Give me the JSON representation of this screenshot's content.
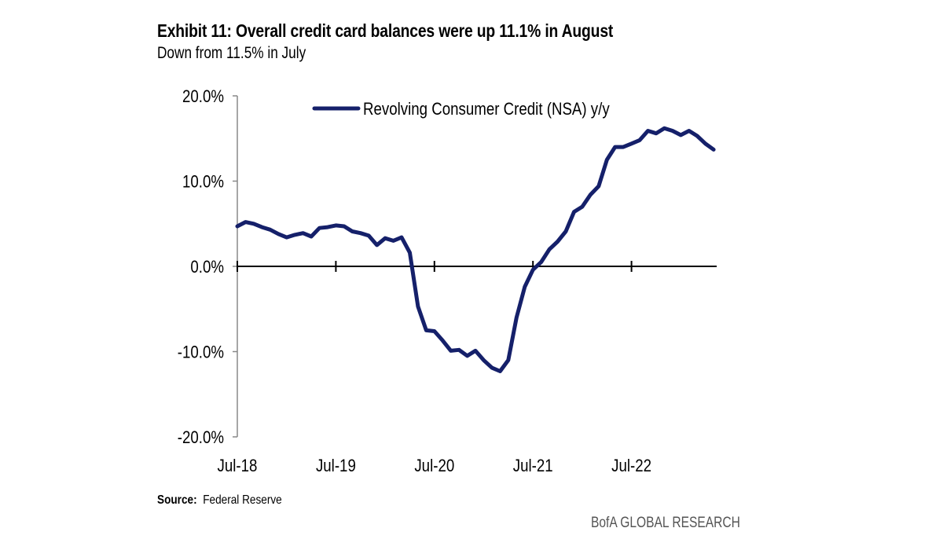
{
  "title": "Exhibit 11: Overall credit card balances were up 11.1% in August",
  "subtitle": "Down from 11.5% in July",
  "source_label": "Source:",
  "source_text": "Federal Reserve",
  "brand": "BofA GLOBAL RESEARCH",
  "colors": {
    "line": "#15206a",
    "axis": "#000000",
    "yaxis": "#888888"
  },
  "chart_data": {
    "type": "line",
    "title": "Exhibit 11: Overall credit card balances were up 11.1% in August",
    "subtitle": "Down from 11.5% in July",
    "xlabel": "",
    "ylabel": "",
    "ylim": [
      -20,
      20
    ],
    "y_ticks": [
      20,
      10,
      0,
      -10,
      -20
    ],
    "y_tick_labels": [
      "20.0%",
      "10.0%",
      "0.0%",
      "-10.0%",
      "-20.0%"
    ],
    "x_tick_labels": [
      "Jul-18",
      "Jul-19",
      "Jul-20",
      "Jul-21",
      "Jul-22"
    ],
    "x_ticks": [
      "2018-07",
      "2019-07",
      "2020-07",
      "2021-07",
      "2022-07"
    ],
    "grid": false,
    "legend_position": "top",
    "series": [
      {
        "name": "Revolving Consumer Credit (NSA) y/y",
        "x": [
          "2018-07",
          "2018-08",
          "2018-09",
          "2018-10",
          "2018-11",
          "2018-12",
          "2019-01",
          "2019-02",
          "2019-03",
          "2019-04",
          "2019-05",
          "2019-06",
          "2019-07",
          "2019-08",
          "2019-09",
          "2019-10",
          "2019-11",
          "2019-12",
          "2020-01",
          "2020-02",
          "2020-03",
          "2020-04",
          "2020-05",
          "2020-06",
          "2020-07",
          "2020-08",
          "2020-09",
          "2020-10",
          "2020-11",
          "2020-12",
          "2021-01",
          "2021-02",
          "2021-03",
          "2021-04",
          "2021-05",
          "2021-06",
          "2021-07",
          "2021-08",
          "2021-09",
          "2021-10",
          "2021-11",
          "2021-12",
          "2022-01",
          "2022-02",
          "2022-03",
          "2022-04",
          "2022-05",
          "2022-06",
          "2022-07",
          "2022-08",
          "2022-09",
          "2022-10",
          "2022-11",
          "2022-12",
          "2023-01",
          "2023-02",
          "2023-03",
          "2023-04",
          "2023-05"
        ],
        "values": [
          4.7,
          5.2,
          5.0,
          4.6,
          4.3,
          3.8,
          3.4,
          3.7,
          3.9,
          3.5,
          4.5,
          4.6,
          4.8,
          4.7,
          4.1,
          3.9,
          3.6,
          2.5,
          3.3,
          3.0,
          3.4,
          1.6,
          -4.7,
          -7.5,
          -7.6,
          -8.7,
          -9.9,
          -9.8,
          -10.5,
          -9.9,
          -11.0,
          -11.9,
          -12.3,
          -11.0,
          -6.0,
          -2.4,
          -0.4,
          0.5,
          2.0,
          2.9,
          4.1,
          6.4,
          7.0,
          8.4,
          9.4,
          12.5,
          14.0,
          14.0,
          14.4,
          14.8,
          15.9,
          15.6,
          16.2,
          15.9,
          15.4,
          15.9,
          15.3,
          14.4,
          13.7
        ]
      }
    ]
  }
}
